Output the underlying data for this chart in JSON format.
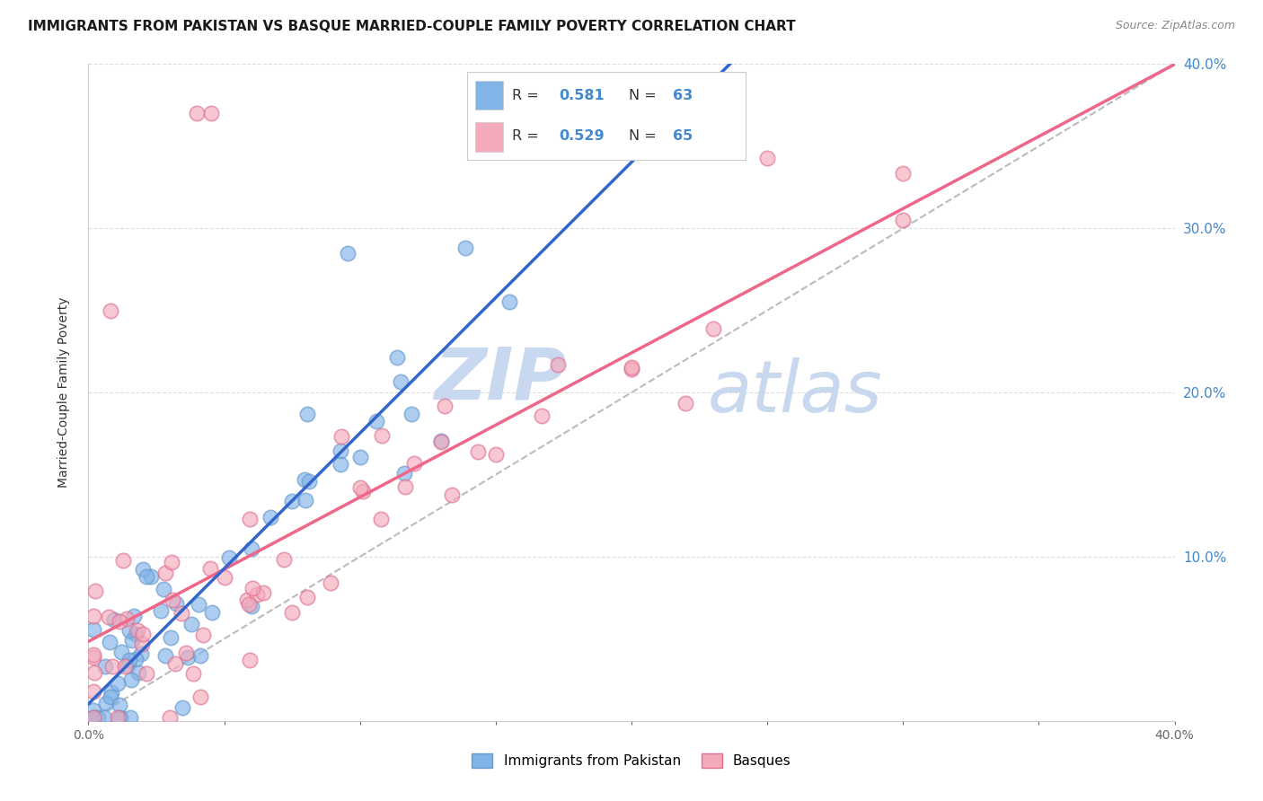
{
  "title": "IMMIGRANTS FROM PAKISTAN VS BASQUE MARRIED-COUPLE FAMILY POVERTY CORRELATION CHART",
  "source": "Source: ZipAtlas.com",
  "ylabel": "Married-Couple Family Poverty",
  "xlim": [
    0.0,
    0.4
  ],
  "ylim": [
    0.0,
    0.4
  ],
  "blue_color": "#82B4E8",
  "blue_edge_color": "#6699CC",
  "pink_color": "#F4AABB",
  "pink_edge_color": "#E07090",
  "blue_line_color": "#3366CC",
  "pink_line_color": "#EE6688",
  "dash_line_color": "#BBBBBB",
  "blue_R": 0.581,
  "blue_N": 63,
  "pink_R": 0.529,
  "pink_N": 65,
  "watermark_zip": "ZIP",
  "watermark_atlas": "atlas",
  "watermark_color": "#C8D8EE",
  "legend_label_blue": "Immigrants from Pakistan",
  "legend_label_pink": "Basques",
  "title_fontsize": 11,
  "right_tick_color": "#4488CC",
  "ytick_values": [
    0.1,
    0.2,
    0.3,
    0.4
  ],
  "ytick_labels": [
    "10.0%",
    "20.0%",
    "30.0%",
    "40.0%"
  ],
  "grid_color": "#DDDDDD",
  "grid_style": "--"
}
